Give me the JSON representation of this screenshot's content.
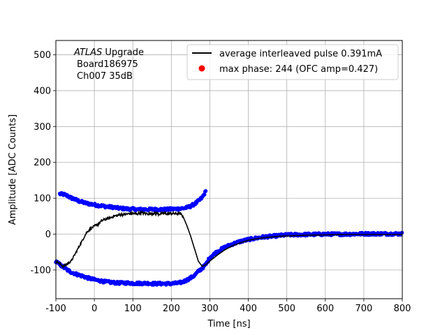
{
  "chart_data": {
    "type": "scatter",
    "xlabel": "Time [ns]",
    "ylabel": "Amplitude [ADC Counts]",
    "xlim": [
      -100,
      800
    ],
    "ylim": [
      -180,
      540
    ],
    "xticks": [
      -100,
      0,
      100,
      200,
      300,
      400,
      500,
      600,
      700,
      800
    ],
    "yticks": [
      -100,
      0,
      100,
      200,
      300,
      400,
      500
    ],
    "grid": true,
    "legend_position": "top-right",
    "annotation": {
      "line1_italic": "ATLAS",
      "line1_rest": " Upgrade",
      "line2": "Board186975",
      "line3": "Ch007 35dB"
    },
    "series": [
      {
        "name": "average interleaved pulse 0.391mA",
        "kind": "line",
        "color": "#000000",
        "x": [
          -100,
          -80,
          -60,
          -50,
          -40,
          -30,
          -20,
          -10,
          0,
          10,
          20,
          30,
          40,
          50,
          60,
          70,
          80,
          90,
          100,
          110,
          120,
          130,
          140,
          150,
          160,
          170,
          180,
          190,
          200,
          210,
          220,
          225,
          230,
          240,
          250,
          260,
          270,
          280,
          290,
          300,
          320,
          340,
          360,
          380,
          400,
          420,
          440,
          460,
          480,
          500,
          550,
          600,
          650,
          700,
          750,
          800
        ],
        "y": [
          -75,
          -90,
          -75,
          -55,
          -35,
          -15,
          5,
          15,
          22,
          28,
          38,
          42,
          45,
          50,
          52,
          55,
          55,
          57,
          58,
          56,
          60,
          58,
          57,
          58,
          58,
          56,
          58,
          57,
          58,
          57,
          58,
          55,
          50,
          25,
          -5,
          -40,
          -75,
          -90,
          -85,
          -75,
          -58,
          -43,
          -32,
          -24,
          -17,
          -13,
          -10,
          -8,
          -6,
          -5,
          -3,
          -2,
          -1,
          -1,
          -1,
          -1
        ]
      },
      {
        "name": "max phase: 244 (OFC amp=0.427)",
        "kind": "scatter",
        "color": "#0000ff",
        "legend_marker_color": "#ff0000",
        "band_upper": {
          "x": [
            -90,
            -80,
            -70,
            -60,
            -50,
            -40,
            -30,
            -20,
            -10,
            0,
            10,
            20,
            30,
            40,
            50,
            60,
            70,
            80,
            90,
            100,
            110,
            120,
            130,
            140,
            150,
            160,
            170,
            180,
            190,
            200,
            210,
            220,
            230,
            240,
            250,
            260,
            270,
            280,
            290
          ],
          "y": [
            112,
            111,
            107,
            101,
            97,
            92,
            89,
            86,
            84,
            82,
            80,
            79,
            77,
            76,
            75,
            73,
            72,
            71,
            70,
            70,
            69,
            69,
            69,
            69,
            69,
            69,
            69,
            69,
            69,
            70,
            70,
            71,
            72,
            74,
            78,
            84,
            92,
            102,
            120
          ]
        },
        "band_lower": {
          "x": [
            -100,
            -90,
            -80,
            -70,
            -60,
            -50,
            -40,
            -30,
            -20,
            -10,
            0,
            10,
            20,
            30,
            40,
            50,
            60,
            70,
            80,
            90,
            100,
            110,
            120,
            130,
            140,
            150,
            160,
            170,
            180,
            190,
            200,
            210,
            220,
            230,
            240,
            250,
            260,
            270,
            280,
            290,
            300,
            320,
            340,
            360,
            380,
            400,
            420,
            440,
            460,
            480,
            500,
            550,
            600,
            650,
            700,
            750,
            800
          ],
          "y": [
            -75,
            -85,
            -92,
            -100,
            -106,
            -110,
            -114,
            -117,
            -121,
            -124,
            -127,
            -129,
            -131,
            -133,
            -134,
            -135,
            -136,
            -136,
            -136,
            -136,
            -137,
            -137,
            -137,
            -137,
            -137,
            -138,
            -138,
            -138,
            -138,
            -138,
            -138,
            -137,
            -136,
            -133,
            -128,
            -122,
            -115,
            -104,
            -95,
            -84,
            -65,
            -48,
            -36,
            -27,
            -20,
            -15,
            -11,
            -8,
            -6,
            -4,
            -2,
            -1,
            0,
            0,
            1,
            1,
            1
          ]
        }
      }
    ]
  }
}
